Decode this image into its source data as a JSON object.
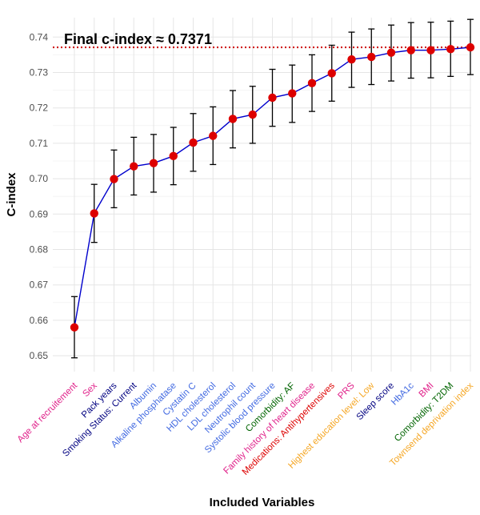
{
  "chart_data": {
    "type": "line",
    "xlabel": "Included Variables",
    "ylabel": "C-index",
    "ylim": [
      0.6455,
      0.7455
    ],
    "yticks": [
      0.65,
      0.66,
      0.67,
      0.68,
      0.69,
      0.7,
      0.71,
      0.72,
      0.73,
      0.74
    ],
    "grid": true,
    "annotation": "Final c-index ≈ 0.7371",
    "reference_line": {
      "y": 0.7371,
      "style": "dotted",
      "color": "#cc0000"
    },
    "line_color": "#0000cc",
    "point_color": "#dd0000",
    "categories": [
      "Age at recruitement",
      "Sex",
      "Pack years",
      "Smoking Status: Current",
      "Albumin",
      "Alkaline phosphatase",
      "Cystatin C",
      "HDL cholesterol",
      "LDL cholesterol",
      "Neutrophil count",
      "Systolic blood pressure",
      "Comorbidity: AF",
      "Family history of heart disease",
      "Medications: Antihypertensives",
      "PRS",
      "Highest education level: Low",
      "Sleep score",
      "HbA1c",
      "BMI",
      "Comorbidity: T2DM",
      "Townsend deprivation index"
    ],
    "category_colors": [
      "#e0218a",
      "#e0218a",
      "#000080",
      "#000080",
      "#4169e1",
      "#4169e1",
      "#4169e1",
      "#4169e1",
      "#4169e1",
      "#4169e1",
      "#4169e1",
      "#006400",
      "#e0218a",
      "#dd0000",
      "#e0218a",
      "#f5a623",
      "#000080",
      "#4169e1",
      "#e0218a",
      "#006400",
      "#f5a623"
    ],
    "series": [
      {
        "values": [
          0.658,
          0.6902,
          0.6999,
          0.7035,
          0.7044,
          0.7064,
          0.7102,
          0.7121,
          0.7169,
          0.7181,
          0.7229,
          0.7241,
          0.727,
          0.7298,
          0.7337,
          0.7344,
          0.7356,
          0.7363,
          0.7363,
          0.7366,
          0.7371
        ],
        "lower": [
          0.6494,
          0.682,
          0.6918,
          0.6954,
          0.6962,
          0.6983,
          0.7021,
          0.704,
          0.7087,
          0.71,
          0.7148,
          0.7159,
          0.719,
          0.7219,
          0.7258,
          0.7266,
          0.7276,
          0.7284,
          0.7285,
          0.7289,
          0.7294
        ],
        "upper": [
          0.6667,
          0.6984,
          0.7081,
          0.7117,
          0.7125,
          0.7145,
          0.7184,
          0.7203,
          0.7249,
          0.7261,
          0.7309,
          0.7321,
          0.735,
          0.7377,
          0.7414,
          0.7423,
          0.7434,
          0.7441,
          0.7442,
          0.7445,
          0.745
        ]
      }
    ]
  }
}
